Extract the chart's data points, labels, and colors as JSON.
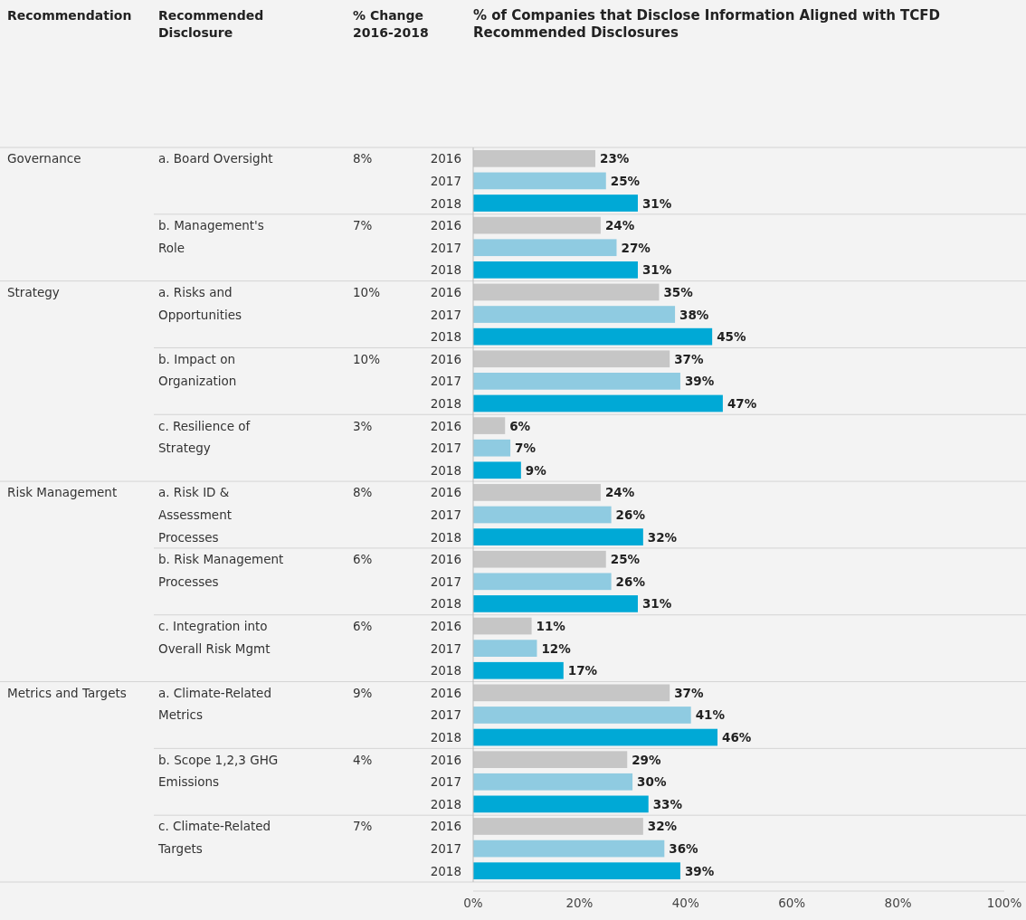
{
  "chart_data": {
    "type": "bar",
    "orientation": "horizontal",
    "title": "% of Companies that Disclose Information Aligned with TCFD Recommended Disclosures",
    "categories": [
      "2016",
      "2017",
      "2018",
      "2016",
      "2017",
      "2018",
      "2016",
      "2017",
      "2018",
      "2016",
      "2017",
      "2018",
      "2016",
      "2017",
      "2018",
      "2016",
      "2017",
      "2018",
      "2016",
      "2017",
      "2018",
      "2016",
      "2017",
      "2018",
      "2016",
      "2017",
      "2018",
      "2016",
      "2017",
      "2018",
      "2016",
      "2017",
      "2018"
    ],
    "values": [
      23,
      25,
      31,
      24,
      27,
      31,
      35,
      38,
      45,
      37,
      39,
      47,
      6,
      7,
      9,
      24,
      26,
      32,
      25,
      26,
      31,
      11,
      12,
      17,
      37,
      41,
      46,
      29,
      30,
      33,
      32,
      36,
      39
    ],
    "value_labels": [
      "23%",
      "25%",
      "31%",
      "24%",
      "27%",
      "31%",
      "35%",
      "38%",
      "45%",
      "37%",
      "39%",
      "47%",
      "6%",
      "7%",
      "9%",
      "24%",
      "26%",
      "32%",
      "25%",
      "26%",
      "31%",
      "11%",
      "12%",
      "17%",
      "37%",
      "41%",
      "46%",
      "29%",
      "30%",
      "33%",
      "32%",
      "36%",
      "39%"
    ],
    "colors": [
      "#c6c6c6",
      "#8fcbe1",
      "#00a9d6",
      "#c6c6c6",
      "#8fcbe1",
      "#00a9d6",
      "#c6c6c6",
      "#8fcbe1",
      "#00a9d6",
      "#c6c6c6",
      "#8fcbe1",
      "#00a9d6",
      "#c6c6c6",
      "#8fcbe1",
      "#00a9d6",
      "#c6c6c6",
      "#8fcbe1",
      "#00a9d6",
      "#c6c6c6",
      "#8fcbe1",
      "#00a9d6",
      "#c6c6c6",
      "#8fcbe1",
      "#00a9d6",
      "#c6c6c6",
      "#8fcbe1",
      "#00a9d6",
      "#c6c6c6",
      "#8fcbe1",
      "#00a9d6",
      "#c6c6c6",
      "#8fcbe1",
      "#00a9d6"
    ],
    "xlim": [
      0,
      100
    ],
    "xticks": [
      {
        "value": 0,
        "label": "0%"
      },
      {
        "value": 20,
        "label": "20%"
      },
      {
        "value": 40,
        "label": "40%"
      },
      {
        "value": 60,
        "label": "60%"
      },
      {
        "value": 80,
        "label": "80%"
      },
      {
        "value": 100,
        "label": "100%"
      }
    ],
    "annotations": [
      "Recommendation",
      "Recommended Disclosure",
      "% Change 2016-2018",
      "Governance",
      "Strategy",
      "Risk Management",
      "Metrics and Targets",
      "a. Board Oversight",
      "8%",
      "b. Management's Role",
      "7%",
      "a. Risks and Opportunities",
      "10%",
      "b. Impact on Organization",
      "10%",
      "c. Resilience of Strategy",
      "3%",
      "a. Risk ID & Assessment Processes",
      "8%",
      "b. Risk Management Processes",
      "6%",
      "c. Integration into Overall Risk Mgmt",
      "6%",
      "a. Climate-Related Metrics",
      "9%",
      "b. Scope 1,2,3 GHG Emissions",
      "4%",
      "c. Climate-Related Targets",
      "7%"
    ]
  }
}
